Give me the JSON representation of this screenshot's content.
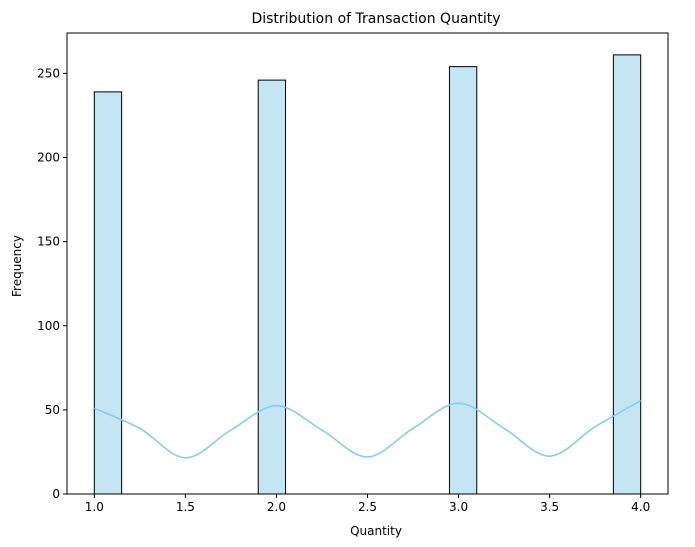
{
  "chart_data": {
    "type": "bar",
    "title": "Distribution of Transaction Quantity",
    "xlabel": "Quantity",
    "ylabel": "Frequency",
    "xlim": [
      0.85,
      4.15
    ],
    "ylim": [
      0,
      274
    ],
    "x_ticks": [
      {
        "value": 1.0,
        "label": "1.0"
      },
      {
        "value": 1.5,
        "label": "1.5"
      },
      {
        "value": 2.0,
        "label": "2.0"
      },
      {
        "value": 2.5,
        "label": "2.5"
      },
      {
        "value": 3.0,
        "label": "3.0"
      },
      {
        "value": 3.5,
        "label": "3.5"
      },
      {
        "value": 4.0,
        "label": "4.0"
      }
    ],
    "y_ticks": [
      {
        "value": 0,
        "label": "0"
      },
      {
        "value": 50,
        "label": "50"
      },
      {
        "value": 100,
        "label": "100"
      },
      {
        "value": 150,
        "label": "150"
      },
      {
        "value": 200,
        "label": "200"
      },
      {
        "value": 250,
        "label": "250"
      }
    ],
    "bars": [
      {
        "x_start": 1.0,
        "x_end": 1.15,
        "value": 239
      },
      {
        "x_start": 1.9,
        "x_end": 2.05,
        "value": 246
      },
      {
        "x_start": 2.95,
        "x_end": 3.1,
        "value": 254
      },
      {
        "x_start": 3.85,
        "x_end": 4.0,
        "value": 261
      }
    ],
    "kde": {
      "x": [
        1.0,
        1.25,
        1.5,
        1.75,
        2.0,
        2.25,
        2.5,
        2.75,
        3.0,
        3.25,
        3.5,
        3.75,
        4.0
      ],
      "y": [
        51,
        39,
        21.5,
        38,
        52.5,
        38,
        22,
        39,
        54,
        39,
        22.5,
        40,
        55.5
      ]
    },
    "grid": false,
    "legend": "none",
    "colors": {
      "bar_fill": "#c4e5f3",
      "bar_edge": "#000000",
      "kde_line": "#87ceeb",
      "axis": "#000000"
    }
  }
}
